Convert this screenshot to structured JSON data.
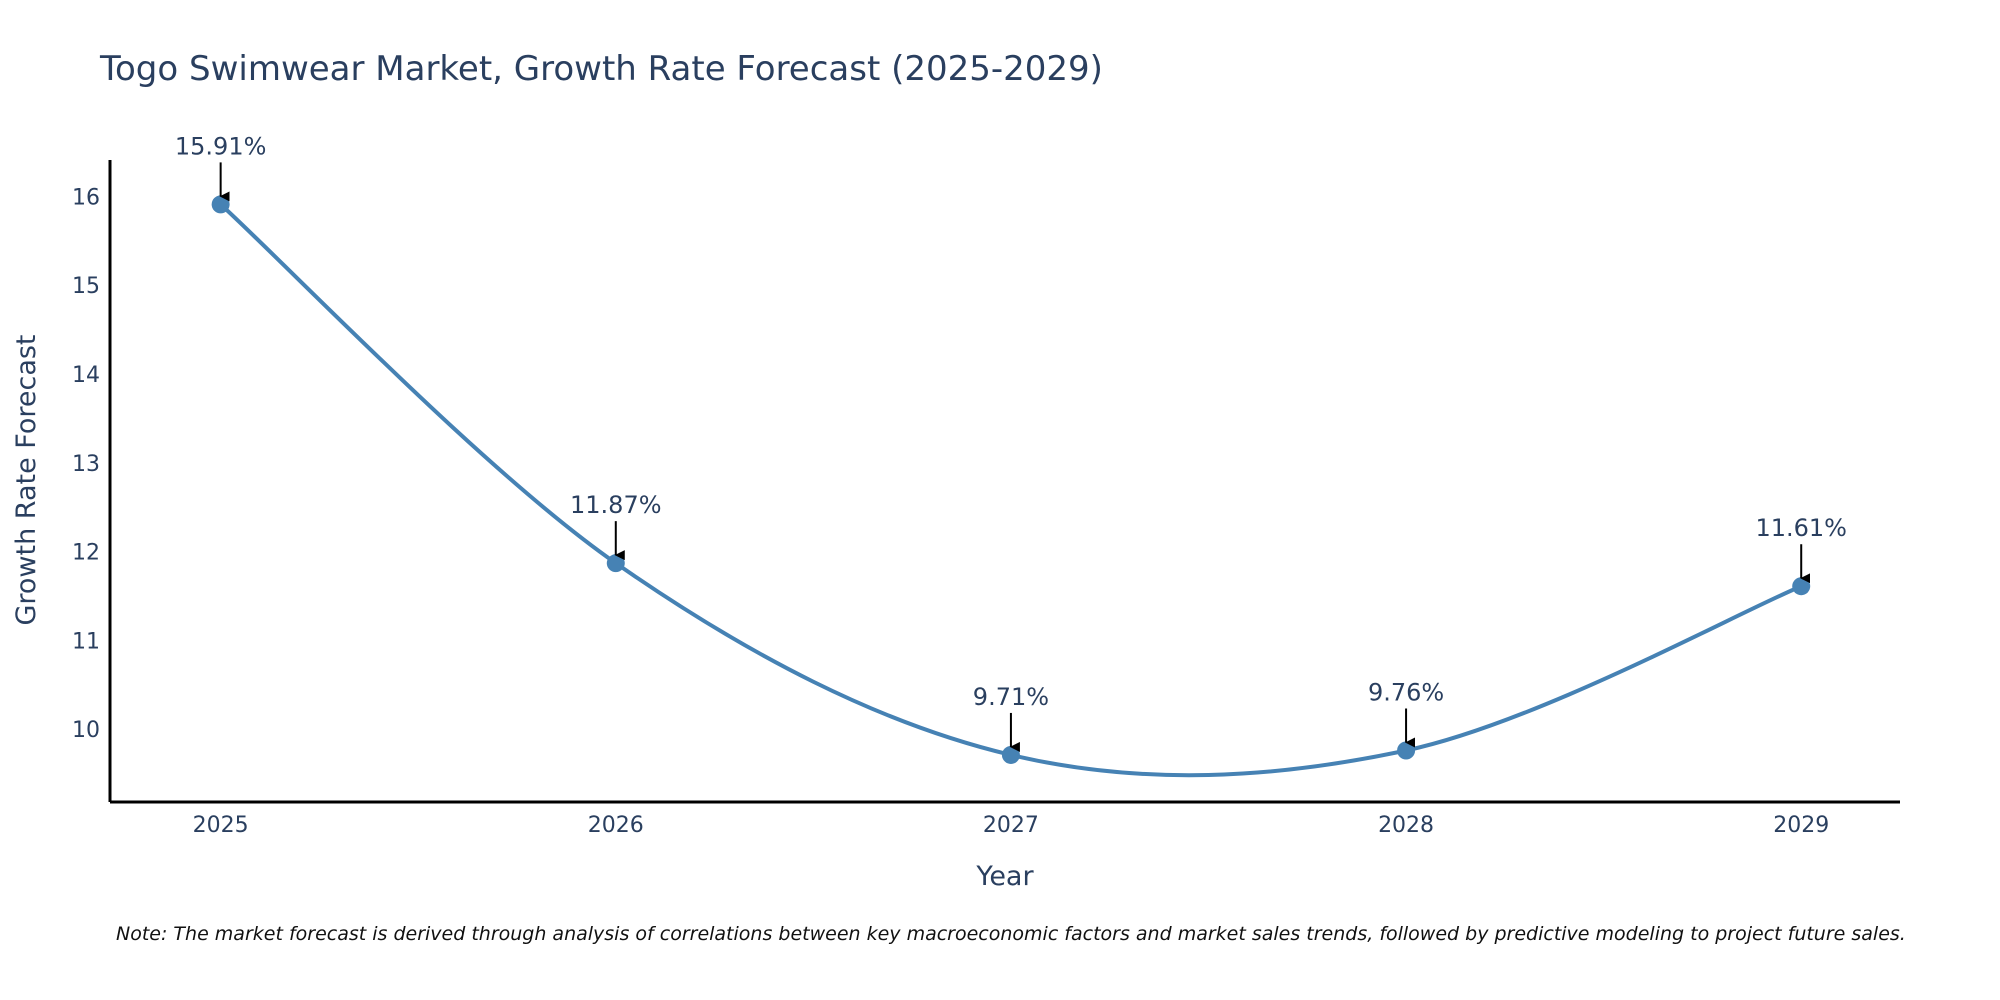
{
  "chart_data": {
    "type": "line",
    "title": "Togo Swimwear Market, Growth Rate Forecast (2025-2029)",
    "xlabel": "Year",
    "ylabel": "Growth Rate Forecast",
    "categories": [
      "2025",
      "2026",
      "2027",
      "2028",
      "2029"
    ],
    "series": [
      {
        "name": "Growth Rate Forecast",
        "values": [
          15.91,
          11.87,
          9.71,
          9.76,
          11.61
        ],
        "labels": [
          "15.91%",
          "11.87%",
          "9.71%",
          "9.76%",
          "11.61%"
        ]
      }
    ],
    "yticks": [
      10,
      11,
      12,
      13,
      14,
      15,
      16
    ],
    "ylim": [
      9.18,
      16.41
    ],
    "xlim": [
      2024.72,
      2029.25
    ],
    "grid": false,
    "line_shape": "spline",
    "line_color": "#4682b4",
    "marker_color": "#4682b4",
    "arrow_color": "#000000",
    "note": "Note: The market forecast is derived through analysis of correlations between key macroeconomic factors and market sales trends, followed by predictive modeling to project future sales."
  }
}
